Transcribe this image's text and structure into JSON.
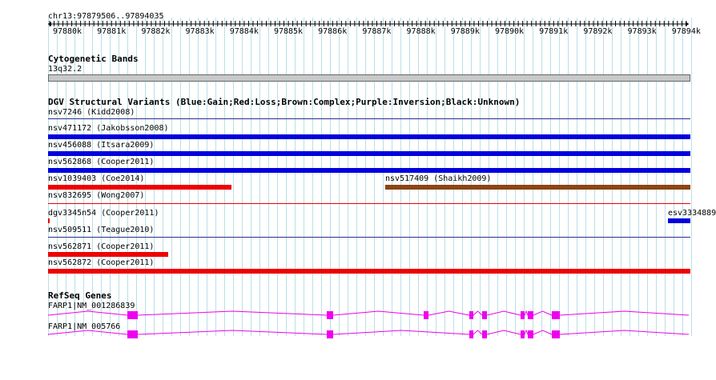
{
  "ruler": {
    "position": "chr13:97879506..97894035",
    "ticks": [
      "97880k",
      "97881k",
      "97882k",
      "97883k",
      "97884k",
      "97885k",
      "97886k",
      "97887k",
      "97888k",
      "97889k",
      "97890k",
      "97891k",
      "97892k",
      "97893k",
      "97894k"
    ]
  },
  "cytoband": {
    "title": "Cytogenetic Bands",
    "band_label": "13q32.2"
  },
  "dgv": {
    "title": "DGV Structural Variants (Blue:Gain;Red:Loss;Brown:Complex;Purple:Inversion;Black:Unknown)",
    "colors": {
      "gain": "#0000dd",
      "loss": "#ee0000",
      "complex": "#8b4513",
      "separator": "#2d2d8a"
    },
    "labels": {
      "v0": "nsv7246 (Kidd2008)",
      "v1": "nsv471172 (Jakobsson2008)",
      "v2": "nsv456088 (Itsara2009)",
      "v3": "nsv562868 (Cooper2011)",
      "v4": "nsv1039403 (Coe2014)",
      "v5": "nsv517409 (Shaikh2009)",
      "v6": "nsv832695 (Wong2007)",
      "v7": "dgv3345n54 (Cooper2011)",
      "v8": "esv3334889",
      "v9": "nsv509511 (Teague2010)",
      "v10": "nsv562871 (Cooper2011)",
      "v11": "nsv562872 (Cooper2011)"
    }
  },
  "refseq": {
    "title": "RefSeq Genes",
    "color": "#ee00ee",
    "transcripts": [
      {
        "label": "FARP1|NM_001286839"
      },
      {
        "label": "FARP1|NM_005766"
      }
    ]
  }
}
